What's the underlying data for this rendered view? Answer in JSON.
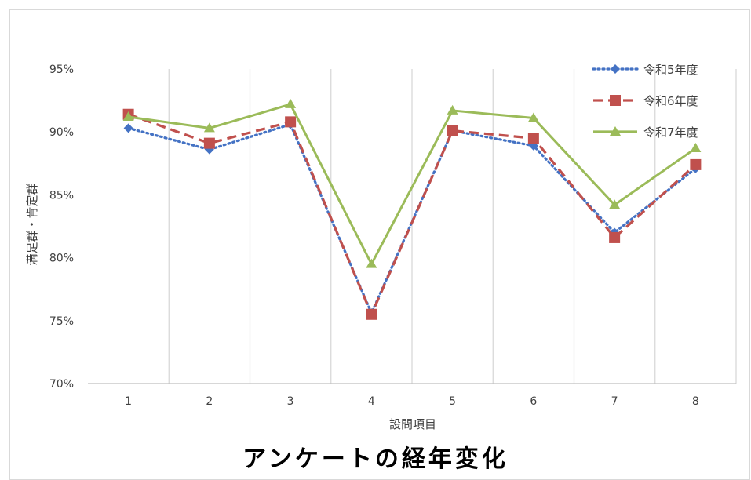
{
  "chart_data": {
    "type": "line",
    "title": "アンケートの経年変化",
    "xlabel": "設問項目",
    "ylabel": "満足群・肯定群",
    "categories": [
      "1",
      "2",
      "3",
      "4",
      "5",
      "6",
      "7",
      "8"
    ],
    "ylim": [
      0.7,
      0.95
    ],
    "yticks": [
      "70%",
      "75%",
      "80%",
      "85%",
      "90%",
      "95%"
    ],
    "grid": "vertical",
    "legend": "top-right",
    "series": [
      {
        "name": "令和5年度",
        "values": [
          0.903,
          0.886,
          0.906,
          0.756,
          0.901,
          0.889,
          0.82,
          0.871
        ],
        "color": "#4472c4",
        "style": "dotted",
        "marker": "diamond"
      },
      {
        "name": "令和6年度",
        "values": [
          0.914,
          0.891,
          0.908,
          0.755,
          0.901,
          0.895,
          0.816,
          0.874
        ],
        "color": "#c0504d",
        "style": "dashed",
        "marker": "square"
      },
      {
        "name": "令和7年度",
        "values": [
          0.912,
          0.903,
          0.922,
          0.795,
          0.917,
          0.911,
          0.842,
          0.887
        ],
        "color": "#9bbb59",
        "style": "solid",
        "marker": "triangle"
      }
    ]
  }
}
